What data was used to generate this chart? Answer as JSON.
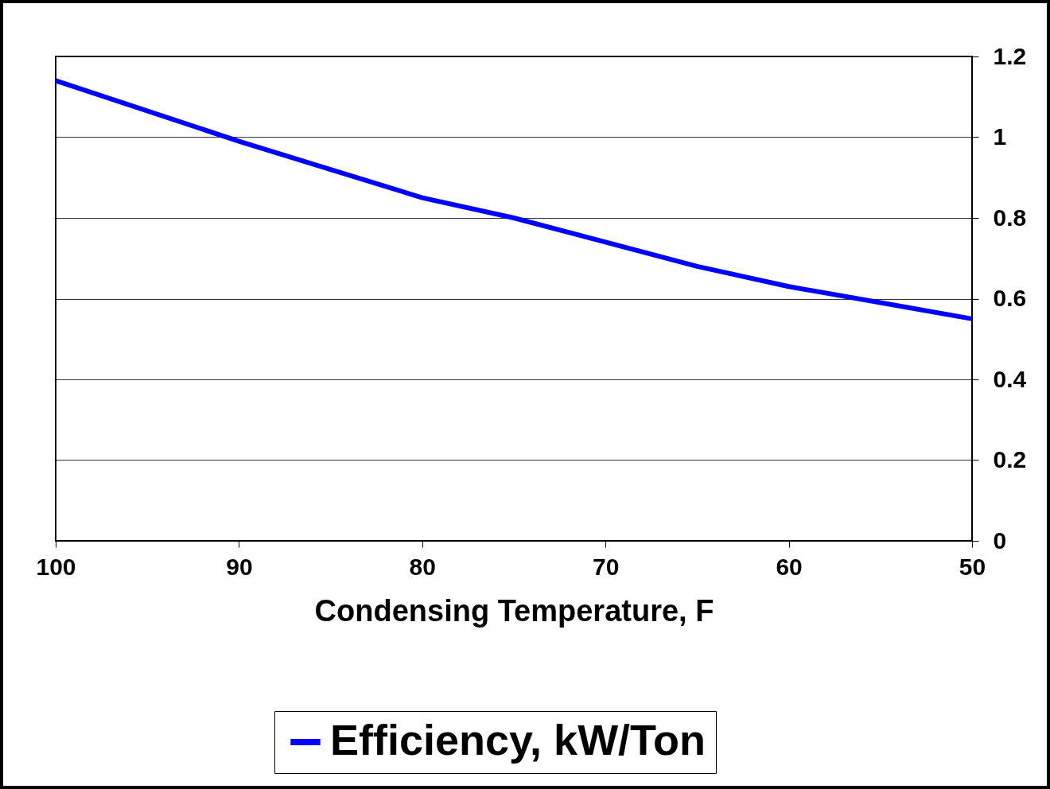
{
  "chart_data": {
    "type": "line",
    "xlabel": "Condensing Temperature, F",
    "x": [
      100,
      90,
      85,
      80,
      75,
      70,
      65,
      60,
      55,
      50
    ],
    "series": [
      {
        "name": "Efficiency, kW/Ton",
        "color": "#0000ff",
        "values": [
          1.14,
          0.99,
          0.92,
          0.85,
          0.8,
          0.74,
          0.68,
          0.63,
          0.59,
          0.55
        ]
      }
    ],
    "xlim": [
      100,
      50
    ],
    "xticks": [
      100,
      90,
      80,
      70,
      60,
      50
    ],
    "ylim": [
      0,
      1.2
    ],
    "yticks": [
      0,
      0.2,
      0.4,
      0.6,
      0.8,
      1,
      1.2
    ],
    "grid": "y",
    "legend": "bottom"
  }
}
